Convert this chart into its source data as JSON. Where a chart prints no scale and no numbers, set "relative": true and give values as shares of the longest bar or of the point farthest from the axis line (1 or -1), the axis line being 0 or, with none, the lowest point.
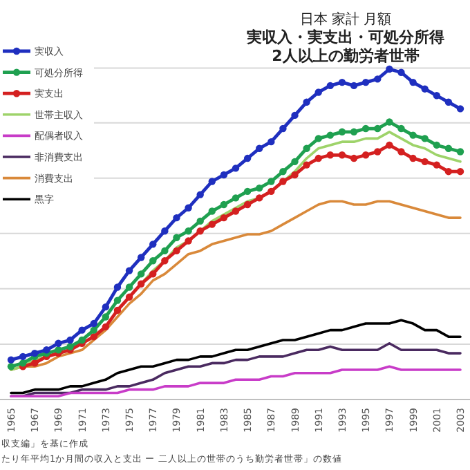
{
  "chart_data": {
    "type": "line",
    "title": "日本 家計 月額",
    "subtitle": "実収入・実支出・可処分所得2人以上の勤労者世帯",
    "relative": true,
    "grid": "y",
    "legend": "top left",
    "tick_labels": "x",
    "categories": [
      "1965",
      null,
      "1967",
      null,
      "1969",
      null,
      "1971",
      null,
      "1973",
      null,
      "1975",
      null,
      "1977",
      null,
      "1979",
      null,
      "1981",
      null,
      "1983",
      null,
      "1985",
      null,
      "1987",
      null,
      "1989",
      null,
      "1991",
      null,
      "1993",
      null,
      "1995",
      null,
      "1997",
      null,
      "1999",
      null,
      "2001",
      null,
      "2003"
    ],
    "series": [
      {
        "name": "実収入",
        "color": "#1f2fbf",
        "marker": "circle",
        "values": [
          0.12,
          0.13,
          0.14,
          0.15,
          0.17,
          0.18,
          0.21,
          0.23,
          0.28,
          0.34,
          0.39,
          0.43,
          0.47,
          0.51,
          0.55,
          0.58,
          0.62,
          0.66,
          0.68,
          0.7,
          0.73,
          0.76,
          0.78,
          0.82,
          0.86,
          0.9,
          0.93,
          0.95,
          0.96,
          0.95,
          0.96,
          0.97,
          1.0,
          0.99,
          0.96,
          0.94,
          0.92,
          0.9,
          0.88
        ]
      },
      {
        "name": "可処分所得",
        "color": "#1fa050",
        "marker": "circle",
        "values": [
          0.1,
          0.11,
          0.13,
          0.14,
          0.15,
          0.16,
          0.18,
          0.21,
          0.25,
          0.3,
          0.34,
          0.38,
          0.42,
          0.45,
          0.49,
          0.51,
          0.54,
          0.57,
          0.59,
          0.61,
          0.63,
          0.64,
          0.66,
          0.69,
          0.72,
          0.76,
          0.79,
          0.8,
          0.81,
          0.81,
          0.82,
          0.82,
          0.84,
          0.82,
          0.8,
          0.79,
          0.77,
          0.76,
          0.75
        ]
      },
      {
        "name": "実支出",
        "color": "#d42020",
        "marker": "circle",
        "values": [
          null,
          0.1,
          0.11,
          0.13,
          0.14,
          0.15,
          0.17,
          0.19,
          0.22,
          0.27,
          0.31,
          0.35,
          0.38,
          0.42,
          0.45,
          0.48,
          0.51,
          0.53,
          0.55,
          0.57,
          0.59,
          0.61,
          0.63,
          0.66,
          0.68,
          0.71,
          0.73,
          0.74,
          0.74,
          0.73,
          0.74,
          0.75,
          0.77,
          0.75,
          0.73,
          0.72,
          0.71,
          0.69,
          0.69
        ]
      },
      {
        "name": "世帯主収入",
        "color": "#9ed36a",
        "marker": "none",
        "values": [
          0.09,
          0.1,
          0.12,
          0.13,
          0.14,
          0.15,
          0.17,
          0.19,
          0.22,
          0.27,
          0.31,
          0.35,
          0.39,
          0.42,
          0.46,
          0.48,
          0.51,
          0.54,
          0.56,
          0.58,
          0.6,
          0.61,
          0.63,
          0.66,
          0.69,
          0.73,
          0.76,
          0.77,
          0.78,
          0.78,
          0.79,
          0.79,
          0.81,
          0.79,
          0.77,
          0.76,
          0.74,
          0.73,
          0.72
        ]
      },
      {
        "name": "配偶者収入",
        "color": "#c83cc8",
        "marker": "none",
        "values": [
          0.01,
          0.01,
          0.01,
          0.01,
          0.01,
          0.02,
          0.02,
          0.02,
          0.02,
          0.02,
          0.03,
          0.03,
          0.03,
          0.04,
          0.04,
          0.04,
          0.05,
          0.05,
          0.05,
          0.06,
          0.06,
          0.06,
          0.07,
          0.07,
          0.08,
          0.08,
          0.08,
          0.08,
          0.09,
          0.09,
          0.09,
          0.09,
          0.1,
          0.09,
          0.09,
          0.09,
          0.09,
          0.09,
          0.09
        ]
      },
      {
        "name": "非消費支出",
        "color": "#4a2a60",
        "marker": "none",
        "values": [
          0.01,
          0.01,
          0.02,
          0.02,
          0.02,
          0.02,
          0.03,
          0.03,
          0.03,
          0.04,
          0.04,
          0.05,
          0.06,
          0.08,
          0.09,
          0.1,
          0.1,
          0.11,
          0.11,
          0.12,
          0.12,
          0.13,
          0.13,
          0.13,
          0.14,
          0.15,
          0.15,
          0.16,
          0.15,
          0.15,
          0.15,
          0.15,
          0.17,
          0.15,
          0.15,
          0.15,
          0.15,
          0.14,
          0.14
        ]
      },
      {
        "name": "消費支出",
        "color": "#d9893a",
        "marker": "none",
        "values": [
          0.09,
          0.1,
          0.1,
          0.11,
          0.13,
          0.14,
          0.15,
          0.18,
          0.21,
          0.25,
          0.29,
          0.32,
          0.36,
          0.38,
          0.41,
          0.44,
          0.45,
          0.47,
          0.48,
          0.49,
          0.5,
          0.5,
          0.51,
          0.53,
          0.55,
          0.57,
          0.59,
          0.6,
          0.6,
          0.59,
          0.59,
          0.6,
          0.6,
          0.59,
          0.58,
          0.57,
          0.56,
          0.55,
          0.55
        ]
      },
      {
        "name": "黒字",
        "color": "#000000",
        "marker": "none",
        "values": [
          0.02,
          0.02,
          0.03,
          0.03,
          0.03,
          0.04,
          0.04,
          0.05,
          0.06,
          0.08,
          0.09,
          0.1,
          0.1,
          0.11,
          0.12,
          0.12,
          0.13,
          0.13,
          0.14,
          0.15,
          0.15,
          0.16,
          0.17,
          0.18,
          0.18,
          0.19,
          0.2,
          0.21,
          0.21,
          0.22,
          0.23,
          0.23,
          0.23,
          0.24,
          0.23,
          0.21,
          0.21,
          0.19,
          0.19
        ]
      }
    ],
    "annotations": [
      "収支編」を基に作成",
      "たり年平均1か月間の収入と支出 ー 二人以上の世帯のうち勤労者世帯」の数値"
    ]
  }
}
